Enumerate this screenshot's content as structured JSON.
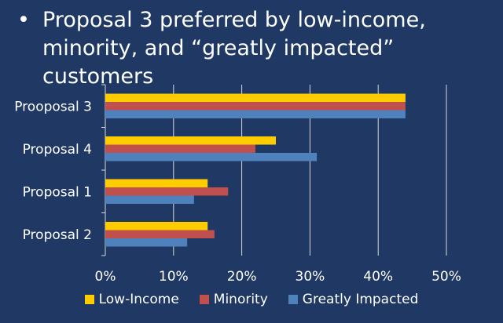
{
  "slide": {
    "bullet": "•",
    "title": "Proposal 3 preferred by low-income, minority, and “greatly impacted” customers"
  },
  "chart_data": {
    "type": "bar",
    "orientation": "horizontal",
    "categories": [
      "Prooposal 3",
      "Proposal 4",
      "Proposal 1",
      "Proposal 2"
    ],
    "series": [
      {
        "name": "Low-Income",
        "color": "#ffcc00",
        "values": [
          44,
          25,
          15,
          15
        ]
      },
      {
        "name": "Minority",
        "color": "#c0504d",
        "values": [
          44,
          22,
          18,
          16
        ]
      },
      {
        "name": "Greatly Impacted",
        "color": "#4f81bd",
        "values": [
          44,
          31,
          13,
          12
        ]
      }
    ],
    "xlim": [
      0,
      50
    ],
    "xticks": [
      "0%",
      "10%",
      "20%",
      "30%",
      "40%",
      "50%"
    ],
    "grid": true,
    "legend": "bottom"
  }
}
